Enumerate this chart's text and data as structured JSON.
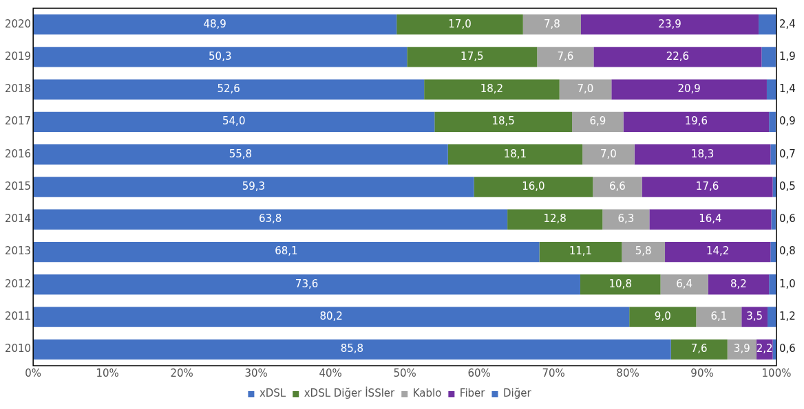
{
  "chart_data": {
    "type": "bar",
    "orientation": "horizontal",
    "stacked": true,
    "legend": "bottom",
    "grid": false,
    "categories": [
      "2020",
      "2019",
      "2018",
      "2017",
      "2016",
      "2015",
      "2014",
      "2013",
      "2012",
      "2011",
      "2010"
    ],
    "xlim": [
      0,
      100
    ],
    "xticks": [
      {
        "value": 0,
        "label": "0%"
      },
      {
        "value": 10,
        "label": "10%"
      },
      {
        "value": 20,
        "label": "20%"
      },
      {
        "value": 30,
        "label": "30%"
      },
      {
        "value": 40,
        "label": "40%"
      },
      {
        "value": 50,
        "label": "50%"
      },
      {
        "value": 60,
        "label": "60%"
      },
      {
        "value": 70,
        "label": "70%"
      },
      {
        "value": 80,
        "label": "80%"
      },
      {
        "value": 90,
        "label": "90%"
      },
      {
        "value": 100,
        "label": "100%"
      }
    ],
    "series": [
      {
        "name": "xDSL",
        "color": "#4472c4",
        "values": [
          48.9,
          50.3,
          52.6,
          54.0,
          55.8,
          59.3,
          63.8,
          68.1,
          73.6,
          80.2,
          85.8
        ],
        "value_labels": [
          "48,9",
          "50,3",
          "52,6",
          "54,0",
          "55,8",
          "59,3",
          "63,8",
          "68,1",
          "73,6",
          "80,2",
          "85,8"
        ]
      },
      {
        "name": "xDSL Diğer İSSler",
        "color": "#548235",
        "values": [
          17.0,
          17.5,
          18.2,
          18.5,
          18.1,
          16.0,
          12.8,
          11.1,
          10.8,
          9.0,
          7.6
        ],
        "value_labels": [
          "17,0",
          "17,5",
          "18,2",
          "18,5",
          "18,1",
          "16,0",
          "12,8",
          "11,1",
          "10,8",
          "9,0",
          "7,6"
        ]
      },
      {
        "name": "Kablo",
        "color": "#a5a5a5",
        "values": [
          7.8,
          7.6,
          7.0,
          6.9,
          7.0,
          6.6,
          6.3,
          5.8,
          6.4,
          6.1,
          3.9
        ],
        "value_labels": [
          "7,8",
          "7,6",
          "7,0",
          "6,9",
          "7,0",
          "6,6",
          "6,3",
          "5,8",
          "6,4",
          "6,1",
          "3,9"
        ]
      },
      {
        "name": "Fiber",
        "color": "#7030a0",
        "values": [
          23.9,
          22.6,
          20.9,
          19.6,
          18.3,
          17.6,
          16.4,
          14.2,
          8.2,
          3.5,
          2.2
        ],
        "value_labels": [
          "23,9",
          "22,6",
          "20,9",
          "19,6",
          "18,3",
          "17,6",
          "16,4",
          "14,2",
          "8,2",
          "3,5",
          "2,2"
        ]
      },
      {
        "name": "Diğer",
        "color": "#4472c4",
        "values": [
          2.4,
          1.9,
          1.4,
          0.9,
          0.7,
          0.5,
          0.6,
          0.8,
          1.0,
          1.2,
          0.6
        ],
        "value_labels": [
          "2,4",
          "1,9",
          "1,4",
          "0,9",
          "0,7",
          "0,5",
          "0,6",
          "0,8",
          "1,0",
          "1,2",
          "0,6"
        ]
      }
    ]
  }
}
